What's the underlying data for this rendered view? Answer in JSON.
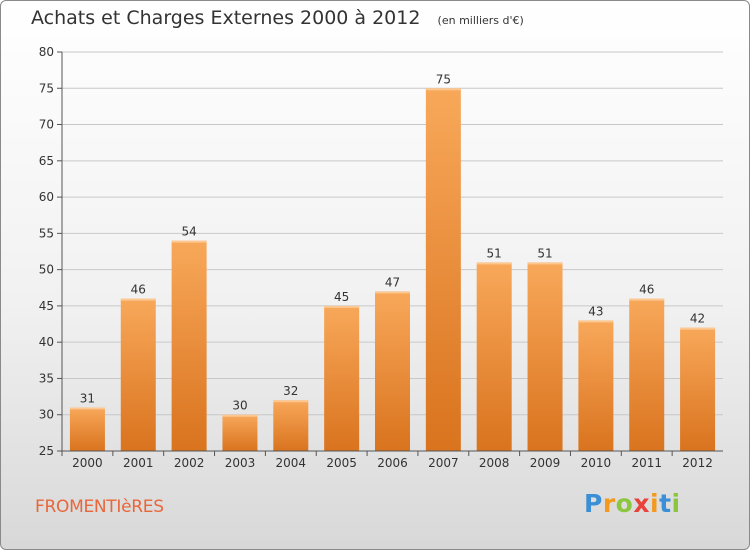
{
  "header": {
    "title": "Achats et Charges Externes 2000 à 2012",
    "subtitle": "(en milliers d'€)"
  },
  "footer": {
    "commune": "FROMENTIèRES",
    "brand_letters": [
      {
        "ch": "P",
        "color": "#3a8fd6"
      },
      {
        "ch": "r",
        "color": "#f39a1e"
      },
      {
        "ch": "o",
        "color": "#8cc63f"
      },
      {
        "ch": "x",
        "color": "#e8423a"
      },
      {
        "ch": "i",
        "color": "#f39a1e"
      },
      {
        "ch": "t",
        "color": "#3a8fd6"
      },
      {
        "ch": "i",
        "color": "#8cc63f"
      }
    ]
  },
  "colors": {
    "bar_light": "#f8a85a",
    "bar_dark": "#d9731e",
    "grid": "#c8c8c8",
    "axis": "#555555",
    "text": "#333333"
  },
  "chart_data": {
    "type": "bar",
    "title": "Achats et Charges Externes 2000 à 2012",
    "subtitle": "(en milliers d'€)",
    "categories": [
      "2000",
      "2001",
      "2002",
      "2003",
      "2004",
      "2005",
      "2006",
      "2007",
      "2008",
      "2009",
      "2010",
      "2011",
      "2012"
    ],
    "values": [
      31,
      46,
      54,
      30,
      32,
      45,
      47,
      75,
      51,
      51,
      43,
      46,
      42
    ],
    "ylim": [
      25,
      80
    ],
    "yticks": [
      25,
      30,
      35,
      40,
      45,
      50,
      55,
      60,
      65,
      70,
      75,
      80
    ],
    "grid": true,
    "data_labels": true
  }
}
